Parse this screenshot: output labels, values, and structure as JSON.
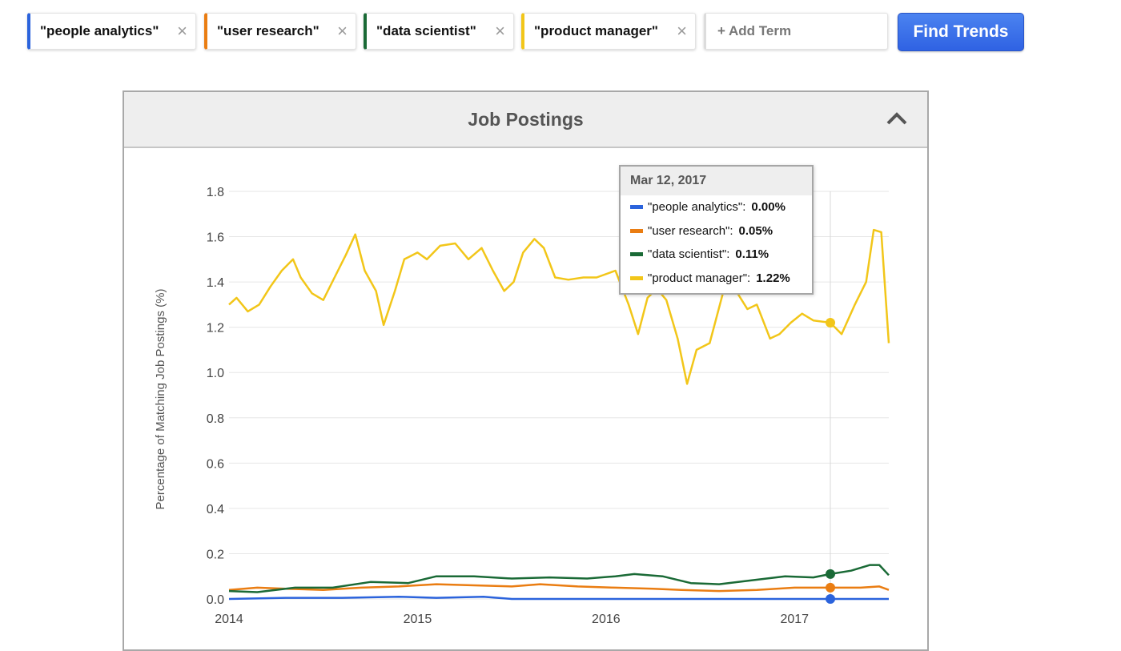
{
  "terms": [
    {
      "label": "\"people analytics\"",
      "color": "#2b63dc"
    },
    {
      "label": "\"user research\"",
      "color": "#ea7d12"
    },
    {
      "label": "\"data scientist\"",
      "color": "#1a6a36"
    },
    {
      "label": "\"product manager\"",
      "color": "#f2c619"
    }
  ],
  "close_glyph": "×",
  "add_term": {
    "placeholder": "+ Add Term"
  },
  "find_button": {
    "label": "Find Trends"
  },
  "panel": {
    "title": "Job Postings"
  },
  "tooltip": {
    "date": "Mar 12, 2017",
    "rows": [
      {
        "label": "\"people analytics\":",
        "value": "0.00%",
        "color": "#2b63dc"
      },
      {
        "label": "\"user research\":",
        "value": "0.05%",
        "color": "#ea7d12"
      },
      {
        "label": "\"data scientist\":",
        "value": "0.11%",
        "color": "#1a6a36"
      },
      {
        "label": "\"product manager\":",
        "value": "1.22%",
        "color": "#f2c619"
      }
    ]
  },
  "chart_data": {
    "type": "line",
    "title": "Job Postings",
    "xlabel": "",
    "ylabel": "Percentage of Matching Job Postings (%)",
    "xlim": [
      2014.0,
      2017.5
    ],
    "ylim": [
      0,
      1.8
    ],
    "yticks": [
      "0.0",
      "0.2",
      "0.4",
      "0.6",
      "0.8",
      "1.0",
      "1.2",
      "1.4",
      "1.6",
      "1.8"
    ],
    "xticks": [
      "2014",
      "2015",
      "2016",
      "2017"
    ],
    "grid": true,
    "hover_x": 2017.19,
    "series": [
      {
        "name": "\"people analytics\"",
        "color": "#2b63dc",
        "points": [
          [
            2014.0,
            0.0
          ],
          [
            2014.3,
            0.005
          ],
          [
            2014.6,
            0.005
          ],
          [
            2014.9,
            0.01
          ],
          [
            2015.1,
            0.005
          ],
          [
            2015.35,
            0.01
          ],
          [
            2015.5,
            0.0
          ],
          [
            2015.8,
            0.0
          ],
          [
            2016.1,
            0.0
          ],
          [
            2016.4,
            0.0
          ],
          [
            2016.7,
            0.0
          ],
          [
            2017.0,
            0.0
          ],
          [
            2017.19,
            0.0
          ],
          [
            2017.35,
            0.0
          ],
          [
            2017.5,
            0.0
          ]
        ]
      },
      {
        "name": "\"user research\"",
        "color": "#ea7d12",
        "points": [
          [
            2014.0,
            0.04
          ],
          [
            2014.15,
            0.05
          ],
          [
            2014.3,
            0.045
          ],
          [
            2014.5,
            0.04
          ],
          [
            2014.7,
            0.05
          ],
          [
            2014.9,
            0.055
          ],
          [
            2015.1,
            0.065
          ],
          [
            2015.3,
            0.06
          ],
          [
            2015.5,
            0.055
          ],
          [
            2015.65,
            0.065
          ],
          [
            2015.85,
            0.055
          ],
          [
            2016.05,
            0.05
          ],
          [
            2016.25,
            0.045
          ],
          [
            2016.4,
            0.04
          ],
          [
            2016.6,
            0.035
          ],
          [
            2016.8,
            0.04
          ],
          [
            2017.0,
            0.05
          ],
          [
            2017.19,
            0.05
          ],
          [
            2017.35,
            0.05
          ],
          [
            2017.45,
            0.055
          ],
          [
            2017.5,
            0.04
          ]
        ]
      },
      {
        "name": "\"data scientist\"",
        "color": "#1a6a36",
        "points": [
          [
            2014.0,
            0.035
          ],
          [
            2014.15,
            0.03
          ],
          [
            2014.35,
            0.05
          ],
          [
            2014.55,
            0.05
          ],
          [
            2014.75,
            0.075
          ],
          [
            2014.95,
            0.07
          ],
          [
            2015.1,
            0.1
          ],
          [
            2015.3,
            0.1
          ],
          [
            2015.5,
            0.09
          ],
          [
            2015.7,
            0.095
          ],
          [
            2015.9,
            0.09
          ],
          [
            2016.05,
            0.1
          ],
          [
            2016.15,
            0.11
          ],
          [
            2016.3,
            0.1
          ],
          [
            2016.45,
            0.07
          ],
          [
            2016.6,
            0.065
          ],
          [
            2016.75,
            0.08
          ],
          [
            2016.95,
            0.1
          ],
          [
            2017.1,
            0.095
          ],
          [
            2017.19,
            0.11
          ],
          [
            2017.3,
            0.125
          ],
          [
            2017.4,
            0.15
          ],
          [
            2017.45,
            0.15
          ],
          [
            2017.5,
            0.105
          ]
        ]
      },
      {
        "name": "\"product manager\"",
        "color": "#f2c619",
        "points": [
          [
            2014.0,
            1.3
          ],
          [
            2014.04,
            1.33
          ],
          [
            2014.1,
            1.27
          ],
          [
            2014.16,
            1.3
          ],
          [
            2014.22,
            1.38
          ],
          [
            2014.28,
            1.45
          ],
          [
            2014.34,
            1.5
          ],
          [
            2014.38,
            1.42
          ],
          [
            2014.44,
            1.35
          ],
          [
            2014.5,
            1.32
          ],
          [
            2014.56,
            1.42
          ],
          [
            2014.62,
            1.52
          ],
          [
            2014.67,
            1.61
          ],
          [
            2014.72,
            1.45
          ],
          [
            2014.78,
            1.36
          ],
          [
            2014.82,
            1.21
          ],
          [
            2014.88,
            1.36
          ],
          [
            2014.93,
            1.5
          ],
          [
            2015.0,
            1.53
          ],
          [
            2015.05,
            1.5
          ],
          [
            2015.12,
            1.56
          ],
          [
            2015.2,
            1.57
          ],
          [
            2015.27,
            1.5
          ],
          [
            2015.34,
            1.55
          ],
          [
            2015.4,
            1.45
          ],
          [
            2015.46,
            1.36
          ],
          [
            2015.51,
            1.4
          ],
          [
            2015.56,
            1.53
          ],
          [
            2015.62,
            1.59
          ],
          [
            2015.67,
            1.55
          ],
          [
            2015.73,
            1.42
          ],
          [
            2015.8,
            1.41
          ],
          [
            2015.88,
            1.42
          ],
          [
            2015.95,
            1.42
          ],
          [
            2016.05,
            1.45
          ],
          [
            2016.12,
            1.3
          ],
          [
            2016.17,
            1.17
          ],
          [
            2016.22,
            1.33
          ],
          [
            2016.27,
            1.37
          ],
          [
            2016.32,
            1.32
          ],
          [
            2016.38,
            1.15
          ],
          [
            2016.43,
            0.95
          ],
          [
            2016.48,
            1.1
          ],
          [
            2016.55,
            1.13
          ],
          [
            2016.62,
            1.35
          ],
          [
            2016.69,
            1.36
          ],
          [
            2016.75,
            1.28
          ],
          [
            2016.8,
            1.3
          ],
          [
            2016.87,
            1.15
          ],
          [
            2016.92,
            1.17
          ],
          [
            2016.98,
            1.22
          ],
          [
            2017.04,
            1.26
          ],
          [
            2017.1,
            1.23
          ],
          [
            2017.19,
            1.22
          ],
          [
            2017.25,
            1.17
          ],
          [
            2017.32,
            1.3
          ],
          [
            2017.38,
            1.4
          ],
          [
            2017.42,
            1.63
          ],
          [
            2017.46,
            1.62
          ],
          [
            2017.5,
            1.13
          ]
        ]
      }
    ]
  }
}
